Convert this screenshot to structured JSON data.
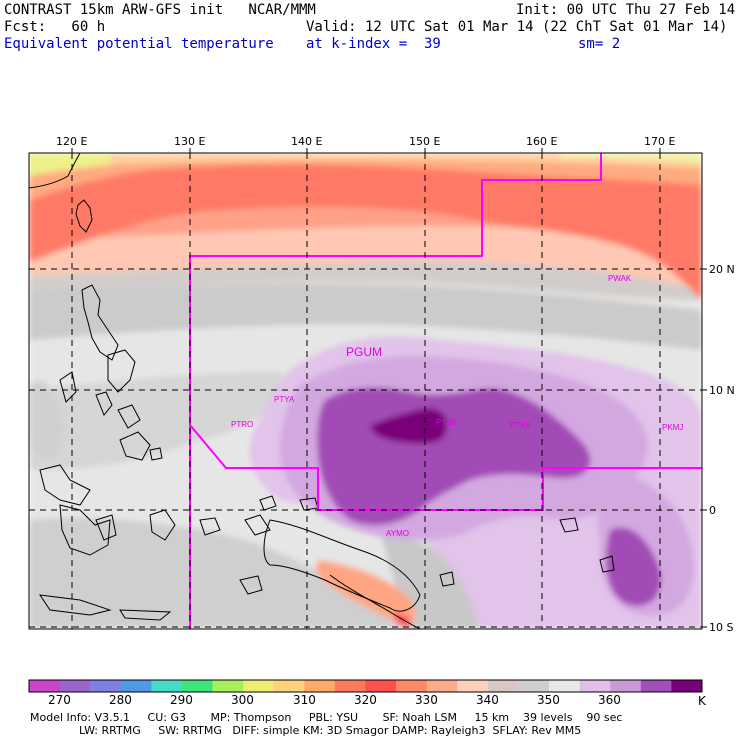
{
  "header": {
    "line1_left": "CONTRAST 15km ARW-GFS init   NCAR/MMM",
    "line1_right": "Init: 00 UTC Thu 27 Feb 14",
    "line2_left": "Fcst:   60 h",
    "line2_right": "Valid: 12 UTC Sat 01 Mar 14 (22 ChT Sat 01 Mar 14)",
    "line3_left": "Equivalent potential temperature",
    "line3_mid": "at k-index =  39",
    "line3_right": "sm= 2"
  },
  "map": {
    "lon_labels": [
      "120 E",
      "130 E",
      "140 E",
      "150 E",
      "160 E",
      "170 E"
    ],
    "lat_labels": [
      "20 N",
      "10 N",
      "0",
      "10 S"
    ],
    "stations": [
      "PGUM",
      "PTYA",
      "PTRO",
      "PTSK",
      "PTKK",
      "PKMJ",
      "PWAK",
      "AYMO"
    ],
    "colors": {
      "boundary": "#ff00ff",
      "station": "#e000e0"
    }
  },
  "colorbar": {
    "labels": [
      "270",
      "280",
      "290",
      "300",
      "310",
      "320",
      "330",
      "340",
      "350",
      "360",
      "K"
    ],
    "colors": [
      "#cc44cc",
      "#9a66cc",
      "#7f7fe6",
      "#4f9ae6",
      "#44dcc8",
      "#3ee67a",
      "#a8ee5a",
      "#eeee6e",
      "#ffd27e",
      "#ffaa66",
      "#ff7a5a",
      "#ff5050",
      "#ff8866",
      "#ffaa8a",
      "#ffd0ba",
      "#d8c8c4",
      "#cfcfcf",
      "#e8e8e8",
      "#e0c0e8",
      "#c99ad6",
      "#a050b8",
      "#780078"
    ]
  },
  "footer": {
    "line1": "Model Info: V3.5.1     CU: G3       MP: Thompson     PBL: YSU       SF: Noah LSM     15 km    39 levels    90 sec",
    "line2": "              LW: RRTMG     SW: RRTMG   DIFF: simple KM: 3D Smagor DAMP: Rayleigh3  SFLAY: Rev MM5"
  }
}
